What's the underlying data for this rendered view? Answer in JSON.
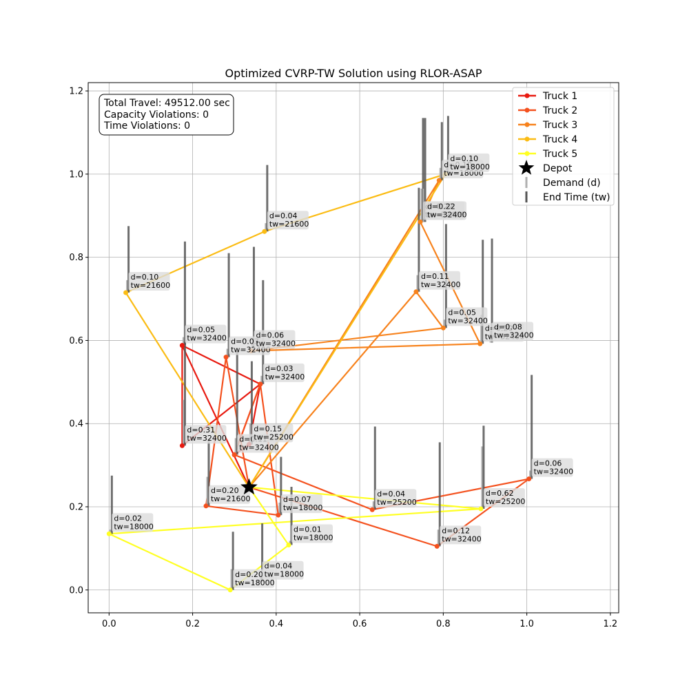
{
  "chart_data": {
    "type": "line",
    "title": "Optimized CVRP-TW Solution using RLOR-ASAP",
    "xlabel": "",
    "ylabel": "",
    "xlim": [
      -0.05,
      1.22
    ],
    "ylim": [
      -0.055,
      1.22
    ],
    "x_ticks": [
      0.0,
      0.2,
      0.4,
      0.6,
      0.8,
      1.0,
      1.2
    ],
    "x_tick_labels": [
      "0.0",
      "0.2",
      "0.4",
      "0.6",
      "0.8",
      "1.0",
      "1.2"
    ],
    "y_ticks": [
      0.0,
      0.2,
      0.4,
      0.6,
      0.8,
      1.0,
      1.2
    ],
    "y_tick_labels": [
      "0.0",
      "0.2",
      "0.4",
      "0.6",
      "0.8",
      "1.0",
      "1.2"
    ],
    "grid": true,
    "legend_position": "top-right",
    "stats_box": {
      "lines": [
        "Total Travel: 49512.00 sec",
        "Capacity Violations: 0",
        "Time Violations: 0"
      ]
    },
    "depot": {
      "x": 0.335,
      "y": 0.247,
      "name": "Depot",
      "color": "#000000"
    },
    "legend_extra": [
      {
        "name": "Demand (d)",
        "color": "#b0b0b0"
      },
      {
        "name": "End Time (tw)",
        "color": "#555555"
      }
    ],
    "customers": [
      {
        "x": 0.175,
        "y": 0.588,
        "d": "0.05",
        "tw": "32400",
        "demand_h": 0.02,
        "tw_h": 0.25
      },
      {
        "x": 0.175,
        "y": 0.347,
        "d": "0.31",
        "tw": "32400",
        "demand_h": 0.11,
        "tw_h": 0.25
      },
      {
        "x": 0.362,
        "y": 0.495,
        "d": "0.03",
        "tw": "32400",
        "demand_h": 0.02,
        "tw_h": 0.25
      },
      {
        "x": 0.3,
        "y": 0.325,
        "d": "0.11",
        "tw": "32400",
        "demand_h": 0.04,
        "tw_h": 0.25
      },
      {
        "x": 0.335,
        "y": 0.35,
        "d": "0.15",
        "tw": "25200",
        "demand_h": 0.05,
        "tw_h": 0.2
      },
      {
        "x": 0.28,
        "y": 0.56,
        "d": "0.03",
        "tw": "32400",
        "demand_h": 0.02,
        "tw_h": 0.25
      },
      {
        "x": 0.232,
        "y": 0.202,
        "d": "0.20",
        "tw": "21600",
        "demand_h": 0.07,
        "tw_h": 0.16
      },
      {
        "x": 0.405,
        "y": 0.18,
        "d": "0.07",
        "tw": "18000",
        "demand_h": 0.03,
        "tw_h": 0.14
      },
      {
        "x": 0.63,
        "y": 0.193,
        "d": "0.04",
        "tw": "25200",
        "demand_h": 0.02,
        "tw_h": 0.2
      },
      {
        "x": 0.785,
        "y": 0.105,
        "d": "0.12",
        "tw": "32400",
        "demand_h": 0.04,
        "tw_h": 0.25
      },
      {
        "x": 1.005,
        "y": 0.267,
        "d": "0.06",
        "tw": "32400",
        "demand_h": 0.02,
        "tw_h": 0.25
      },
      {
        "x": 0.34,
        "y": 0.575,
        "d": "0.06",
        "tw": "32400",
        "demand_h": 0.02,
        "tw_h": 0.25
      },
      {
        "x": 0.735,
        "y": 0.717,
        "d": "0.11",
        "tw": "32400",
        "demand_h": 0.04,
        "tw_h": 0.25
      },
      {
        "x": 0.8,
        "y": 0.63,
        "d": "0.05",
        "tw": "32400",
        "demand_h": 0.02,
        "tw_h": 0.25
      },
      {
        "x": 0.888,
        "y": 0.592,
        "d": "0.20",
        "tw": "32400",
        "demand_h": 0.07,
        "tw_h": 0.25
      },
      {
        "x": 0.91,
        "y": 0.595,
        "d": "0.08",
        "tw": "32400",
        "demand_h": 0.03,
        "tw_h": 0.25
      },
      {
        "x": 0.745,
        "y": 0.885,
        "d": "0.22",
        "tw": "32400",
        "demand_h": 0.08,
        "tw_h": 0.25
      },
      {
        "x": 0.79,
        "y": 0.985,
        "d": "0.10",
        "tw": "18000",
        "demand_h": 0.03,
        "tw_h": 0.14
      },
      {
        "x": 0.805,
        "y": 1.0,
        "d": "0.10",
        "tw": "18000",
        "demand_h": 0.03,
        "tw_h": 0.14
      },
      {
        "x": 0.75,
        "y": 0.885,
        "d": "0.22",
        "tw": "32400",
        "demand_h": 0.08,
        "tw_h": 0.25
      },
      {
        "x": 0.372,
        "y": 0.862,
        "d": "0.04",
        "tw": "21600",
        "demand_h": 0.02,
        "tw_h": 0.16
      },
      {
        "x": 0.04,
        "y": 0.715,
        "d": "0.10",
        "tw": "21600",
        "demand_h": 0.03,
        "tw_h": 0.16
      },
      {
        "x": 0.89,
        "y": 0.195,
        "d": "0.62",
        "tw": "25200",
        "demand_h": 0.15,
        "tw_h": 0.2
      },
      {
        "x": 0.43,
        "y": 0.108,
        "d": "0.01",
        "tw": "18000",
        "demand_h": 0.01,
        "tw_h": 0.14
      },
      {
        "x": 0.0,
        "y": 0.135,
        "d": "0.02",
        "tw": "18000",
        "demand_h": 0.01,
        "tw_h": 0.14
      },
      {
        "x": 0.29,
        "y": 0.0,
        "d": "0.20",
        "tw": "18000",
        "demand_h": 0.05,
        "tw_h": 0.14
      },
      {
        "x": 0.36,
        "y": 0.02,
        "d": "0.04",
        "tw": "18000",
        "demand_h": 0.02,
        "tw_h": 0.14
      }
    ],
    "series": [
      {
        "name": "Truck 1",
        "color": "#e81a10",
        "route": [
          {
            "x": 0.335,
            "y": 0.247
          },
          {
            "x": 0.175,
            "y": 0.588
          },
          {
            "x": 0.175,
            "y": 0.347
          },
          {
            "x": 0.362,
            "y": 0.495
          },
          {
            "x": 0.3,
            "y": 0.325
          },
          {
            "x": 0.335,
            "y": 0.35
          },
          {
            "x": 0.362,
            "y": 0.495
          },
          {
            "x": 0.175,
            "y": 0.588
          }
        ]
      },
      {
        "name": "Truck 2",
        "color": "#f4511e",
        "route": [
          {
            "x": 0.335,
            "y": 0.247
          },
          {
            "x": 0.28,
            "y": 0.56
          },
          {
            "x": 0.232,
            "y": 0.202
          },
          {
            "x": 0.405,
            "y": 0.18
          },
          {
            "x": 0.362,
            "y": 0.495
          },
          {
            "x": 0.3,
            "y": 0.325
          },
          {
            "x": 0.63,
            "y": 0.193
          },
          {
            "x": 1.005,
            "y": 0.267
          },
          {
            "x": 0.785,
            "y": 0.105
          },
          {
            "x": 0.335,
            "y": 0.247
          }
        ]
      },
      {
        "name": "Truck 3",
        "color": "#f7821c",
        "route": [
          {
            "x": 0.335,
            "y": 0.247
          },
          {
            "x": 0.735,
            "y": 0.717
          },
          {
            "x": 0.8,
            "y": 0.63
          },
          {
            "x": 0.34,
            "y": 0.575
          },
          {
            "x": 0.888,
            "y": 0.592
          },
          {
            "x": 0.745,
            "y": 0.885
          },
          {
            "x": 0.79,
            "y": 0.985
          },
          {
            "x": 0.335,
            "y": 0.247
          }
        ]
      },
      {
        "name": "Truck 4",
        "color": "#fbbc14",
        "route": [
          {
            "x": 0.335,
            "y": 0.247
          },
          {
            "x": 0.04,
            "y": 0.715
          },
          {
            "x": 0.372,
            "y": 0.862
          },
          {
            "x": 0.805,
            "y": 1.0
          },
          {
            "x": 0.335,
            "y": 0.247
          }
        ]
      },
      {
        "name": "Truck 5",
        "color": "#ffff22",
        "route": [
          {
            "x": 0.335,
            "y": 0.247
          },
          {
            "x": 0.89,
            "y": 0.195
          },
          {
            "x": 0.0,
            "y": 0.135
          },
          {
            "x": 0.29,
            "y": 0.0
          },
          {
            "x": 0.43,
            "y": 0.108
          },
          {
            "x": 0.335,
            "y": 0.247
          }
        ]
      }
    ]
  }
}
